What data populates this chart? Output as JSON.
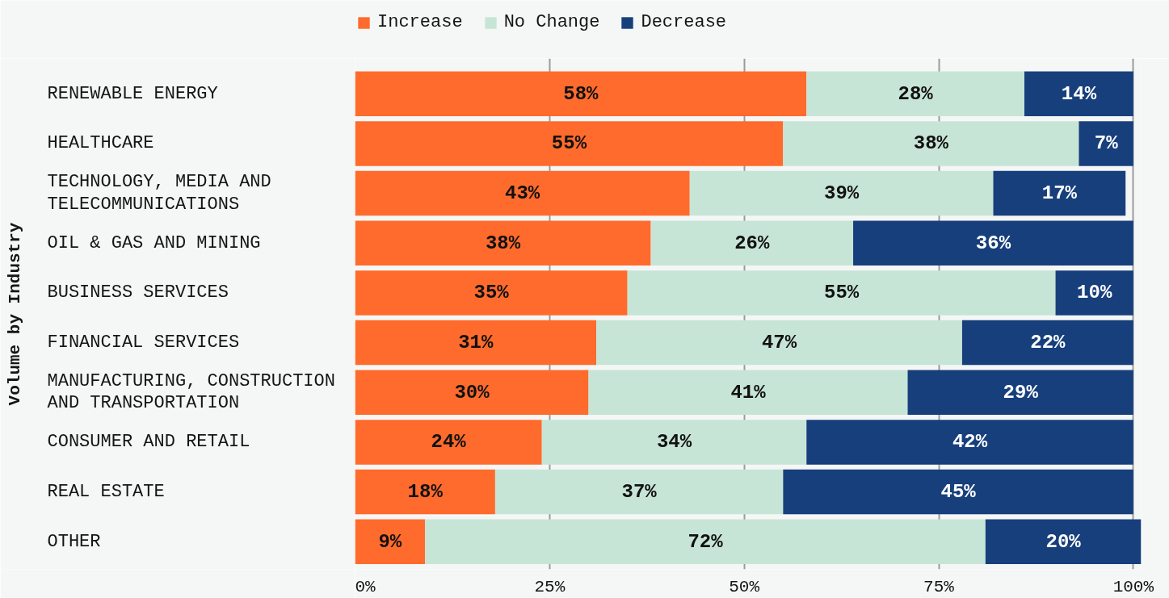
{
  "chart_data": {
    "type": "bar",
    "orientation": "horizontal",
    "stacked": true,
    "ylabel": "Volume by Industry",
    "categories": [
      "RENEWABLE ENERGY",
      "HEALTHCARE",
      "TECHNOLOGY, MEDIA AND TELECOMMUNICATIONS",
      "OIL & GAS AND MINING",
      "BUSINESS SERVICES",
      "FINANCIAL SERVICES",
      "MANUFACTURING, CONSTRUCTION AND TRANSPORTATION",
      "CONSUMER AND RETAIL",
      "REAL ESTATE",
      "OTHER"
    ],
    "series": [
      {
        "name": "Increase",
        "color": "#ff6b2c",
        "values": [
          58,
          55,
          43,
          38,
          35,
          31,
          30,
          24,
          18,
          9
        ],
        "value_labels": [
          "58%",
          "55%",
          "43%",
          "38%",
          "35%",
          "31%",
          "30%",
          "24%",
          "18%",
          "9%"
        ]
      },
      {
        "name": "No Change",
        "color": "#c7e5d6",
        "values": [
          28,
          38,
          39,
          26,
          55,
          47,
          41,
          34,
          37,
          72
        ],
        "value_labels": [
          "28%",
          "38%",
          "39%",
          "26%",
          "55%",
          "47%",
          "41%",
          "34%",
          "37%",
          "72%"
        ]
      },
      {
        "name": "Decrease",
        "color": "#173f7c",
        "values": [
          14,
          7,
          17,
          36,
          10,
          22,
          29,
          42,
          45,
          20
        ],
        "value_labels": [
          "14%",
          "7%",
          "17%",
          "36%",
          "10%",
          "22%",
          "29%",
          "42%",
          "45%",
          "20%"
        ]
      }
    ],
    "xlim": [
      0,
      101
    ],
    "xticks": [
      {
        "value": 0,
        "label": "0%"
      },
      {
        "value": 25,
        "label": "25%"
      },
      {
        "value": 50,
        "label": "50%"
      },
      {
        "value": 75,
        "label": "75%"
      },
      {
        "value": 100,
        "label": "100%"
      }
    ],
    "grid": "x",
    "legend": "top left"
  }
}
